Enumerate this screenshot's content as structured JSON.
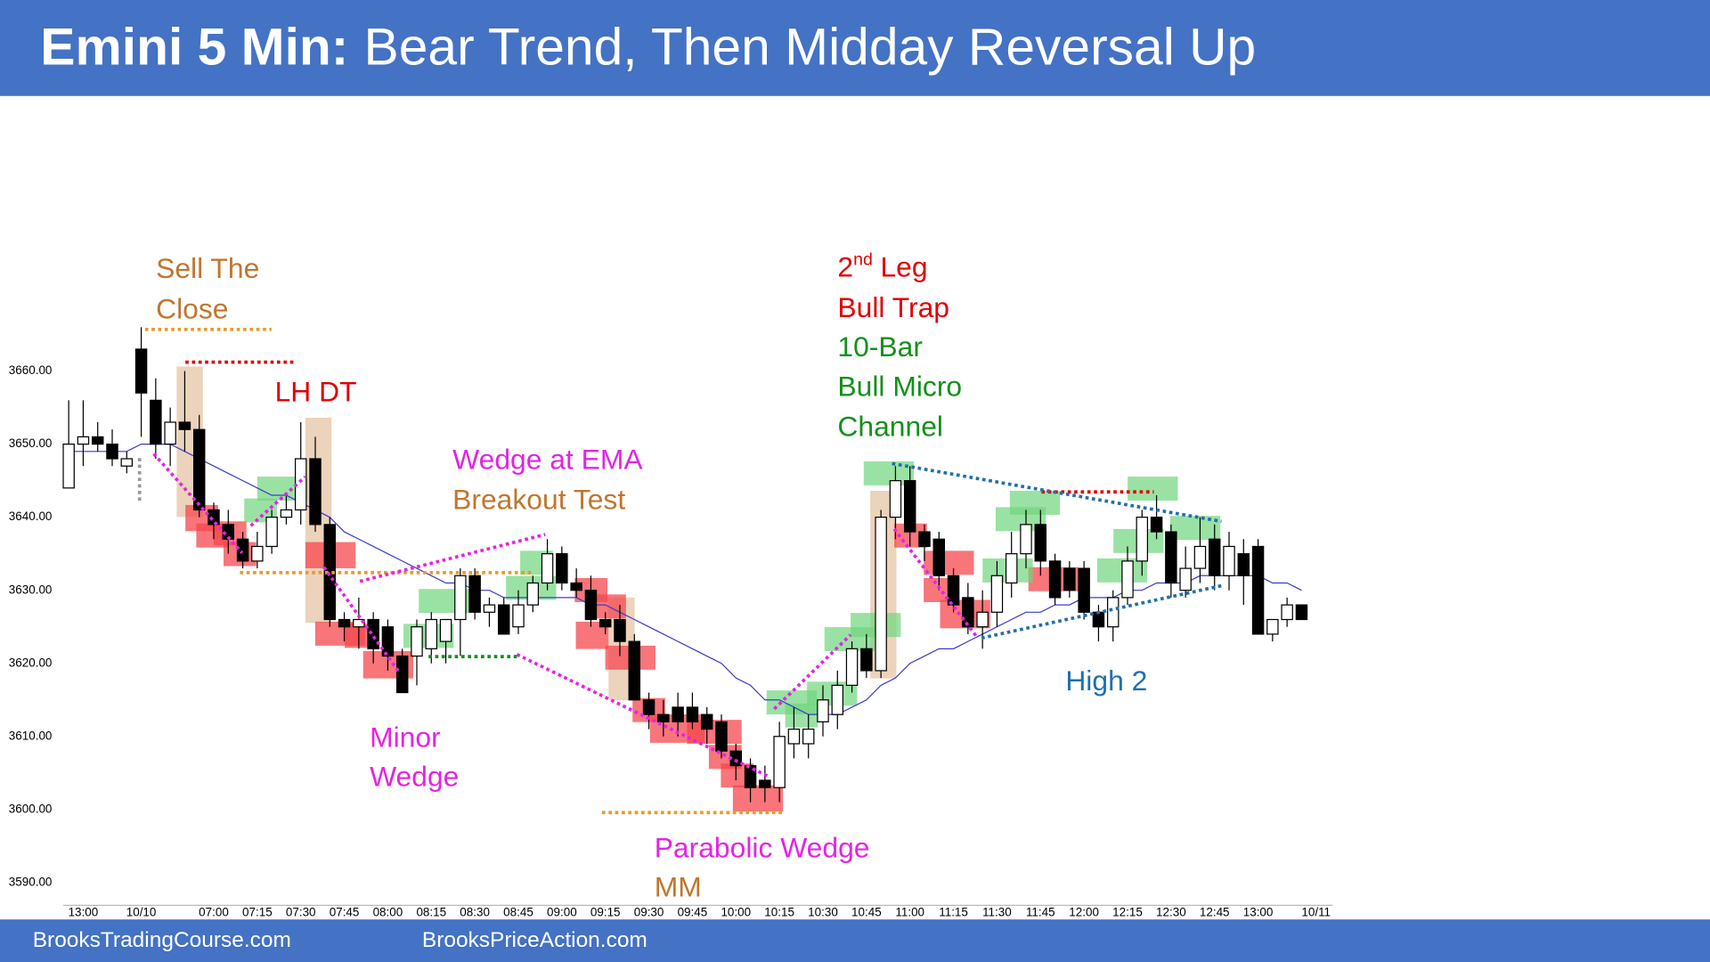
{
  "header": {
    "title": [
      "Emini 5 Min:",
      "Bear Trend, Then Midday Reversal Up"
    ]
  },
  "chart_data": {
    "type": "candlestick",
    "categories": [
      null,
      "13:00",
      null,
      null,
      null,
      "10/10",
      null,
      null,
      null,
      null,
      "07:00",
      null,
      null,
      "07:15",
      null,
      null,
      "07:30",
      null,
      null,
      "07:45",
      null,
      null,
      "08:00",
      null,
      null,
      "08:15",
      null,
      null,
      "08:30",
      null,
      null,
      "08:45",
      null,
      null,
      "09:00",
      null,
      null,
      "09:15",
      null,
      null,
      "09:30",
      null,
      null,
      "09:45",
      null,
      null,
      "10:00",
      null,
      null,
      "10:15",
      null,
      null,
      "10:30",
      null,
      null,
      "10:45",
      null,
      null,
      "11:00",
      null,
      null,
      "11:15",
      null,
      null,
      "11:30",
      null,
      null,
      "11:45",
      null,
      null,
      "12:00",
      null,
      null,
      "12:15",
      null,
      null,
      "12:30",
      null,
      null,
      "12:45",
      null,
      null,
      "13:00",
      null,
      null,
      null,
      "10/11"
    ],
    "open": [
      3644,
      3650,
      3651,
      3650,
      3647,
      3663,
      3656,
      3650,
      3653,
      3652,
      3641,
      3639,
      3637,
      3634,
      3636,
      3640,
      3641,
      3648,
      3639,
      3626,
      3625,
      3626,
      3625,
      3621,
      3621,
      3622,
      3623,
      3626,
      3632,
      3627,
      3628,
      3625,
      3628,
      3631,
      3635,
      3631,
      3630,
      3626,
      3626,
      3623,
      3615,
      3613,
      3614,
      3614,
      3613,
      3612,
      3608,
      3606,
      3604,
      3603,
      3609,
      3609,
      3612,
      3613,
      3617,
      3622,
      3619,
      3640,
      3645,
      3638,
      3637,
      3632,
      3629,
      3625,
      3627,
      3631,
      3635,
      3639,
      3634,
      3633,
      3633,
      3627,
      3625,
      3629,
      3634,
      3640,
      3638,
      3630,
      3633,
      3637,
      3632,
      3635,
      3636,
      3624,
      3626,
      3628,
      null
    ],
    "high": [
      3656,
      3656,
      3653,
      3652,
      3649,
      3666,
      3659,
      3655,
      3660,
      3654,
      3642,
      3641,
      3638,
      3638,
      3641,
      3643,
      3653,
      3651,
      3640,
      3627,
      3629,
      3627,
      3626,
      3622,
      3626,
      3627,
      3626,
      3633,
      3633,
      3629,
      3629,
      3630,
      3632,
      3637,
      3636,
      3633,
      3632,
      3627,
      3628,
      3624,
      3616,
      3615,
      3616,
      3616,
      3614,
      3613,
      3609,
      3607,
      3606,
      3612,
      3614,
      3613,
      3617,
      3619,
      3623,
      3624,
      3641,
      3647,
      3647,
      3639,
      3638,
      3633,
      3631,
      3630,
      3634,
      3638,
      3641,
      3641,
      3635,
      3634,
      3634,
      3628,
      3630,
      3636,
      3641,
      3643,
      3639,
      3636,
      3640,
      3639,
      3638,
      3637,
      3637,
      3626,
      3629,
      3628,
      null
    ],
    "low": [
      3644,
      3647,
      3649,
      3647,
      3646,
      3651,
      3648,
      3647,
      3649,
      3640,
      3637,
      3635,
      3633,
      3633,
      3635,
      3639,
      3639,
      3638,
      3625,
      3623,
      3622,
      3620,
      3619,
      3616,
      3617,
      3620,
      3620,
      3621,
      3626,
      3625,
      3624,
      3624,
      3627,
      3630,
      3630,
      3629,
      3625,
      3624,
      3621,
      3615,
      3611,
      3610,
      3610,
      3611,
      3609,
      3607,
      3604,
      3601,
      3601,
      3601,
      3607,
      3607,
      3610,
      3611,
      3616,
      3618,
      3618,
      3637,
      3636,
      3634,
      3630,
      3627,
      3624,
      3622,
      3625,
      3629,
      3633,
      3632,
      3628,
      3629,
      3626,
      3623,
      3623,
      3628,
      3632,
      3637,
      3629,
      3629,
      3631,
      3630,
      3630,
      3628,
      3624,
      3623,
      3625,
      3626,
      null
    ],
    "close": [
      3650,
      3651,
      3650,
      3648,
      3648,
      3657,
      3650,
      3653,
      3652,
      3641,
      3639,
      3637,
      3634,
      3636,
      3640,
      3641,
      3648,
      3639,
      3626,
      3625,
      3626,
      3622,
      3621,
      3616,
      3625,
      3626,
      3626,
      3632,
      3627,
      3628,
      3624,
      3628,
      3631,
      3635,
      3631,
      3630,
      3626,
      3625,
      3623,
      3615,
      3613,
      3612,
      3612,
      3612,
      3611,
      3608,
      3606,
      3603,
      3603,
      3610,
      3611,
      3611,
      3615,
      3617,
      3622,
      3619,
      3640,
      3645,
      3638,
      3636,
      3632,
      3628,
      3625,
      3627,
      3632,
      3635,
      3639,
      3634,
      3629,
      3630,
      3627,
      3625,
      3629,
      3634,
      3640,
      3638,
      3631,
      3633,
      3636,
      3632,
      3636,
      3632,
      3624,
      3626,
      3628,
      3626,
      null
    ],
    "up_color": "#ffffff",
    "down_color": "#000000",
    "ema": {
      "color": "#3b3bc8",
      "values": [
        3649,
        3649,
        3649,
        3649,
        3649,
        3650,
        3650,
        3650,
        3649,
        3648,
        3647,
        3646,
        3645,
        3644,
        3643,
        3643,
        3642,
        3641,
        3640,
        3638,
        3637,
        3636,
        3635,
        3634,
        3633,
        3632,
        3631,
        3631,
        3630,
        3630,
        3629,
        3629,
        3629,
        3629,
        3629,
        3629,
        3628,
        3628,
        3627,
        3626,
        3625,
        3624,
        3623,
        3622,
        3621,
        3620,
        3618,
        3617,
        3615,
        3615,
        3614,
        3613,
        3613,
        3613,
        3614,
        3615,
        3617,
        3618,
        3620,
        3621,
        3622,
        3622,
        3623,
        3624,
        3625,
        3626,
        3627,
        3627,
        3628,
        3628,
        3629,
        3629,
        3629,
        3630,
        3630,
        3631,
        3631,
        3631,
        3632,
        3632,
        3632,
        3632,
        3632,
        3631,
        3631,
        3630,
        null
      ]
    },
    "ylim": [
      3586,
      3696
    ],
    "yticks": [
      {
        "value": 3590,
        "label": "3590.00"
      },
      {
        "value": 3600,
        "label": "3600.00"
      },
      {
        "value": 3610,
        "label": "3610.00"
      },
      {
        "value": 3620,
        "label": "3620.00"
      },
      {
        "value": 3630,
        "label": "3630.00"
      },
      {
        "value": 3640,
        "label": "3640.00"
      },
      {
        "value": 3650,
        "label": "3650.00"
      },
      {
        "value": 3660,
        "label": "3660.00"
      }
    ],
    "grid": false,
    "annotations": [
      "Sell The",
      "Close",
      "LH DT",
      "Wedge at EMA",
      "Breakout Test",
      "Minor",
      "Wedge",
      "Parabolic Wedge",
      "MM",
      [
        "2",
        "nd",
        "Leg"
      ],
      "Bull Trap",
      "10-Bar",
      "Bull Micro",
      "Channel",
      "High 2"
    ]
  },
  "footer": {
    "links": [
      "BrooksTradingCourse.com",
      "BrooksPriceAction.com"
    ]
  }
}
